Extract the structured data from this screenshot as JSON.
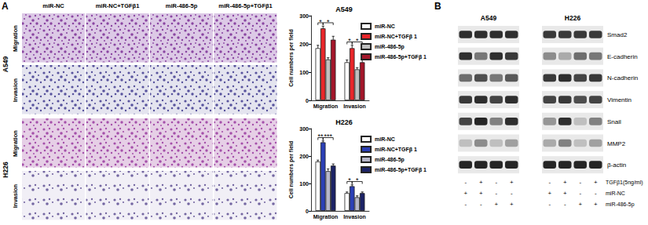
{
  "panel_labels": [
    "A",
    "B"
  ],
  "microscopy": {
    "columns": [
      "miR-NC",
      "miR-NC+TGFβ1",
      "miR-486-5p",
      "miR-486-5p+TGFβ1"
    ],
    "cell_lines": [
      {
        "name": "A549",
        "rows": [
          "Migration",
          "Invasion"
        ]
      },
      {
        "name": "H226",
        "rows": [
          "Migration",
          "Invasion"
        ]
      }
    ]
  },
  "chart_data": [
    {
      "type": "bar",
      "title": "A549",
      "ylabel": "Cell numbers per field",
      "categories": [
        "Migration",
        "Invasion"
      ],
      "series": [
        {
          "name": "miR-NC",
          "color": "#ffffff",
          "values": [
            185,
            135
          ],
          "errors": [
            10,
            8
          ]
        },
        {
          "name": "miR-NC+TGFβ 1",
          "color": "#e8262a",
          "values": [
            255,
            185
          ],
          "errors": [
            8,
            10
          ]
        },
        {
          "name": "miR-486-5p",
          "color": "#bfbfbf",
          "values": [
            145,
            110
          ],
          "errors": [
            6,
            6
          ]
        },
        {
          "name": "miR-486-5p+TGFβ 1",
          "color": "#a3162a",
          "values": [
            215,
            135
          ],
          "errors": [
            12,
            12
          ]
        }
      ],
      "significance": [
        {
          "category": "Migration",
          "between": [
            "miR-NC",
            "miR-NC+TGFβ 1"
          ],
          "label": "*"
        },
        {
          "category": "Migration",
          "between": [
            "miR-NC+TGFβ 1",
            "miR-486-5p+TGFβ 1"
          ],
          "label": "*"
        },
        {
          "category": "Invasion",
          "between": [
            "miR-NC",
            "miR-NC+TGFβ 1"
          ],
          "label": "*"
        },
        {
          "category": "Invasion",
          "between": [
            "miR-NC+TGFβ 1",
            "miR-486-5p+TGFβ 1"
          ],
          "label": "*"
        }
      ],
      "ylim": [
        0,
        300
      ],
      "yticks": [
        0,
        100,
        200,
        300
      ],
      "grid": false,
      "legend": "right"
    },
    {
      "type": "bar",
      "title": "H226",
      "ylabel": "Cell numbers per field",
      "categories": [
        "Migration",
        "Invasion"
      ],
      "series": [
        {
          "name": "miR-NC",
          "color": "#ffffff",
          "values": [
            180,
            65
          ],
          "errors": [
            5,
            4
          ]
        },
        {
          "name": "miR-NC+TGFβ 1",
          "color": "#2b3fb5",
          "values": [
            250,
            90
          ],
          "errors": [
            5,
            5
          ]
        },
        {
          "name": "miR-486-5p",
          "color": "#b7b7c9",
          "values": [
            145,
            50
          ],
          "errors": [
            8,
            5
          ]
        },
        {
          "name": "miR-486-5p+TGFβ 1",
          "color": "#1c2366",
          "values": [
            165,
            65
          ],
          "errors": [
            6,
            4
          ]
        }
      ],
      "significance": [
        {
          "category": "Migration",
          "between": [
            "miR-NC",
            "miR-NC+TGFβ 1"
          ],
          "label": "**"
        },
        {
          "category": "Migration",
          "between": [
            "miR-NC+TGFβ 1",
            "miR-486-5p+TGFβ 1"
          ],
          "label": "***"
        },
        {
          "category": "Invasion",
          "between": [
            "miR-NC",
            "miR-NC+TGFβ 1"
          ],
          "label": "*"
        },
        {
          "category": "Invasion",
          "between": [
            "miR-NC+TGFβ 1",
            "miR-486-5p+TGFβ 1"
          ],
          "label": "*"
        }
      ],
      "ylim": [
        0,
        300
      ],
      "yticks": [
        0,
        100,
        200,
        300
      ],
      "grid": false,
      "legend": "right"
    }
  ],
  "blot": {
    "cell_lines": [
      "A549",
      "H226"
    ],
    "proteins": [
      "Smad2",
      "E-cadherin",
      "N-cadherin",
      "Vimentin",
      "Snail",
      "MMP2",
      "β-actin"
    ],
    "treatments": [
      {
        "label": "TGFβ1(5ng/ml)",
        "signs": [
          "-",
          "+",
          "-",
          "+",
          "-",
          "+",
          "-",
          "+"
        ]
      },
      {
        "label": "miR-NC",
        "signs": [
          "+",
          "+",
          "-",
          "-",
          "+",
          "+",
          "-",
          "-"
        ]
      },
      {
        "label": "miR-486-5p",
        "signs": [
          "-",
          "-",
          "+",
          "+",
          "-",
          "-",
          "+",
          "+"
        ]
      }
    ]
  }
}
